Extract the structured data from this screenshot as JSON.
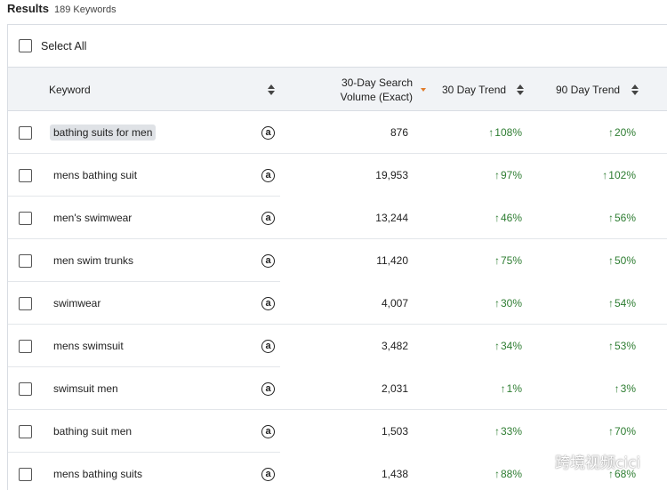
{
  "results": {
    "title": "Results",
    "count": "189 Keywords"
  },
  "select_all_label": "Select All",
  "columns": {
    "keyword": "Keyword",
    "volume": "30-Day Search\nVolume (Exact)",
    "trend30": "30 Day Trend",
    "trend90": "90 Day Trend"
  },
  "sort": {
    "active_column": "volume",
    "active_color": "#e07b2a"
  },
  "colors": {
    "trend_up": "#2e7d32",
    "header_bg": "#f1f3f6"
  },
  "rows": [
    {
      "keyword": "bathing suits for men",
      "highlighted": true,
      "icon": "amazon-icon",
      "volume": "876",
      "trend30": "108%",
      "trend90": "20%"
    },
    {
      "keyword": "mens bathing suit",
      "icon": "amazon-icon",
      "volume": "19,953",
      "trend30": "97%",
      "trend90": "102%"
    },
    {
      "keyword": "men's swimwear",
      "icon": "amazon-icon",
      "volume": "13,244",
      "trend30": "46%",
      "trend90": "56%"
    },
    {
      "keyword": "men swim trunks",
      "icon": "amazon-icon",
      "volume": "11,420",
      "trend30": "75%",
      "trend90": "50%"
    },
    {
      "keyword": "swimwear",
      "icon": "amazon-icon",
      "volume": "4,007",
      "trend30": "30%",
      "trend90": "54%"
    },
    {
      "keyword": "mens swimsuit",
      "icon": "amazon-icon",
      "volume": "3,482",
      "trend30": "34%",
      "trend90": "53%"
    },
    {
      "keyword": "swimsuit men",
      "icon": "amazon-icon",
      "volume": "2,031",
      "trend30": "1%",
      "trend90": "3%"
    },
    {
      "keyword": "bathing suit men",
      "icon": "amazon-icon",
      "volume": "1,503",
      "trend30": "33%",
      "trend90": "70%"
    },
    {
      "keyword": "mens bathing suits",
      "icon": "amazon-icon",
      "volume": "1,438",
      "trend30": "88%",
      "trend90": "68%"
    }
  ],
  "watermark": {
    "text": "跨境视频cici",
    "icon": "wechat-icon"
  }
}
